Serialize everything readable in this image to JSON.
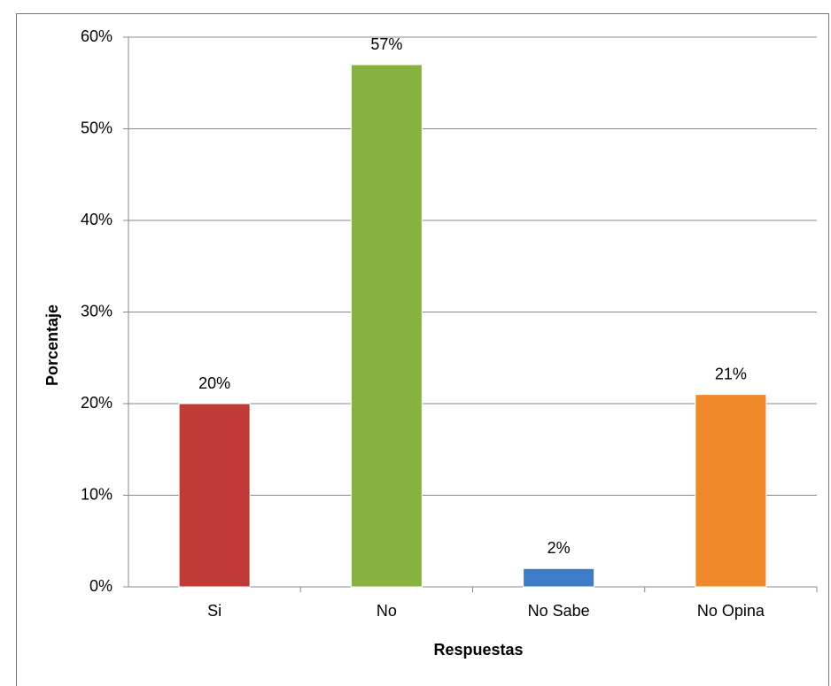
{
  "chart_data": {
    "type": "bar",
    "categories": [
      "Si",
      "No",
      "No Sabe",
      "No Opina"
    ],
    "values": [
      20,
      57,
      2,
      21
    ],
    "value_labels": [
      "20%",
      "57%",
      "2%",
      "21%"
    ],
    "colors": [
      "#c23a35",
      "#86b33e",
      "#3d7cc9",
      "#f0892a"
    ],
    "xlabel": "Respuestas",
    "ylabel": "Porcentaje",
    "ylim": [
      0,
      60
    ],
    "yticks": [
      {
        "value": 0,
        "label": "0%"
      },
      {
        "value": 10,
        "label": "10%"
      },
      {
        "value": 20,
        "label": "20%"
      },
      {
        "value": 30,
        "label": "30%"
      },
      {
        "value": 40,
        "label": "40%"
      },
      {
        "value": 50,
        "label": "50%"
      },
      {
        "value": 60,
        "label": "60%"
      }
    ],
    "grid": true
  }
}
